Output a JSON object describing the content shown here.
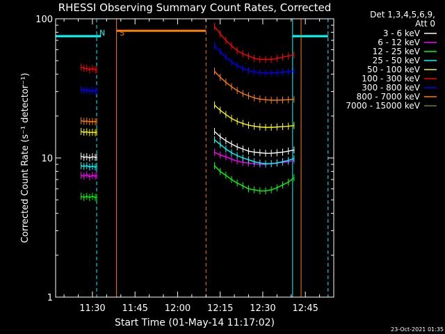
{
  "chart_data": {
    "type": "line",
    "title": "RHESSI Observing Summary Count Rates, Corrected",
    "xlabel": "Start Time (01-May-14 11:17:02)",
    "ylabel": "Corrected Count Rate (s⁻¹ detector⁻¹)",
    "yscale": "log",
    "ylim": [
      1,
      100
    ],
    "ytick_labels": [
      "1",
      "10",
      "100"
    ],
    "xlim": [
      "11:17:02",
      "12:55:00"
    ],
    "xtick_labels": [
      "11:30",
      "11:45",
      "12:00",
      "12:15",
      "12:30",
      "12:45"
    ],
    "legend_header": [
      "Det 1,3,4,5,6,9,",
      "Att 0"
    ],
    "legend_position": "right",
    "timestamp": "23-Oct-2021 01:35",
    "series": [
      {
        "name": "3 - 6 keV",
        "color": "#ffffff",
        "x": [],
        "y": []
      },
      {
        "name": "6 - 12 keV",
        "color": "#ff00ff",
        "segments": [
          {
            "x": [
              "11:26:00",
              "11:27:00",
              "11:28:00",
              "11:29:00",
              "11:30:00",
              "11:31:00",
              "11:31:30"
            ],
            "y": [
              7.5,
              7.4,
              7.6,
              7.3,
              7.5,
              7.4,
              7.5
            ]
          },
          {
            "x": [
              "12:13:00",
              "12:15:00",
              "12:17:00",
              "12:19:00",
              "12:21:00",
              "12:23:00",
              "12:25:00",
              "12:27:00",
              "12:29:00",
              "12:31:00",
              "12:33:00",
              "12:35:00",
              "12:37:00",
              "12:39:00",
              "12:41:00"
            ],
            "y": [
              11.0,
              10.5,
              10.2,
              9.8,
              9.5,
              9.3,
              9.2,
              9.1,
              9.0,
              9.0,
              9.1,
              9.2,
              9.3,
              9.4,
              9.6
            ]
          }
        ]
      },
      {
        "name": "12 - 25 keV",
        "color": "#00ff00",
        "segments": [
          {
            "x": [
              "11:26:00",
              "11:27:00",
              "11:28:00",
              "11:29:00",
              "11:30:00",
              "11:31:00",
              "11:31:30"
            ],
            "y": [
              5.3,
              5.2,
              5.3,
              5.2,
              5.3,
              5.2,
              5.2
            ]
          },
          {
            "x": [
              "12:13:00",
              "12:15:00",
              "12:17:00",
              "12:19:00",
              "12:21:00",
              "12:23:00",
              "12:25:00",
              "12:27:00",
              "12:29:00",
              "12:31:00",
              "12:33:00",
              "12:35:00",
              "12:37:00",
              "12:39:00",
              "12:41:00"
            ],
            "y": [
              8.8,
              8.0,
              7.5,
              7.0,
              6.6,
              6.3,
              6.0,
              5.9,
              5.8,
              5.8,
              5.9,
              6.1,
              6.4,
              6.7,
              7.2
            ]
          }
        ]
      },
      {
        "name": "25 - 50 keV",
        "color": "#00ffff",
        "segments": [
          {
            "x": [
              "11:26:00",
              "11:27:00",
              "11:28:00",
              "11:29:00",
              "11:30:00",
              "11:31:00",
              "11:31:30"
            ],
            "y": [
              8.8,
              8.7,
              8.8,
              8.6,
              8.7,
              8.6,
              8.7
            ]
          },
          {
            "x": [
              "12:13:00",
              "12:15:00",
              "12:17:00",
              "12:19:00",
              "12:21:00",
              "12:23:00",
              "12:25:00",
              "12:27:00",
              "12:29:00",
              "12:31:00",
              "12:33:00",
              "12:35:00",
              "12:37:00",
              "12:39:00",
              "12:41:00"
            ],
            "y": [
              13.5,
              12.5,
              11.6,
              10.9,
              10.4,
              10.0,
              9.7,
              9.4,
              9.2,
              9.1,
              9.1,
              9.2,
              9.4,
              9.6,
              9.9
            ]
          }
        ]
      },
      {
        "name": "50 - 100 keV",
        "color": "#ffff00",
        "segments": [
          {
            "x": [
              "11:26:00",
              "11:27:00",
              "11:28:00",
              "11:29:00",
              "11:30:00",
              "11:31:00",
              "11:31:30"
            ],
            "y": [
              15.5,
              15.3,
              15.4,
              15.2,
              15.3,
              15.2,
              15.3
            ]
          },
          {
            "x": [
              "12:13:00",
              "12:15:00",
              "12:17:00",
              "12:19:00",
              "12:21:00",
              "12:23:00",
              "12:25:00",
              "12:27:00",
              "12:29:00",
              "12:31:00",
              "12:33:00",
              "12:35:00",
              "12:37:00",
              "12:39:00",
              "12:41:00"
            ],
            "y": [
              24.0,
              22.0,
              20.5,
              19.2,
              18.3,
              17.7,
              17.2,
              16.9,
              16.7,
              16.6,
              16.6,
              16.7,
              16.8,
              16.9,
              17.1
            ]
          }
        ]
      },
      {
        "name": "100 - 300 keV",
        "color": "#ff0000",
        "segments": [
          {
            "x": [
              "11:26:00",
              "11:27:00",
              "11:28:00",
              "11:29:00",
              "11:30:00",
              "11:31:00",
              "11:31:30"
            ],
            "y": [
              45,
              44,
              44,
              43,
              44,
              43,
              43
            ]
          },
          {
            "x": [
              "12:13:00",
              "12:15:00",
              "12:17:00",
              "12:19:00",
              "12:21:00",
              "12:23:00",
              "12:25:00",
              "12:27:00",
              "12:29:00",
              "12:31:00",
              "12:33:00",
              "12:35:00",
              "12:37:00",
              "12:39:00",
              "12:41:00"
            ],
            "y": [
              88,
              78,
              70,
              64,
              59,
              56,
              54,
              52,
              51,
              51,
              51,
              52,
              53,
              54,
              55
            ]
          }
        ]
      },
      {
        "name": "300 - 800 keV",
        "color": "#0000ff",
        "segments": [
          {
            "x": [
              "11:26:00",
              "11:27:00",
              "11:28:00",
              "11:29:00",
              "11:30:00",
              "11:31:00",
              "11:31:30"
            ],
            "y": [
              31,
              30.5,
              30.8,
              30.2,
              30.5,
              30.2,
              30.4
            ]
          },
          {
            "x": [
              "12:13:00",
              "12:15:00",
              "12:17:00",
              "12:19:00",
              "12:21:00",
              "12:23:00",
              "12:25:00",
              "12:27:00",
              "12:29:00",
              "12:31:00",
              "12:33:00",
              "12:35:00",
              "12:37:00",
              "12:39:00",
              "12:41:00"
            ],
            "y": [
              64,
              58,
              53,
              49,
              46,
              44,
              42.5,
              41.5,
              41,
              40.8,
              40.8,
              41,
              41.3,
              41.6,
              42
            ]
          }
        ]
      },
      {
        "name": "800 - 7000 keV",
        "color": "#ff7f00",
        "segments": [
          {
            "x": [
              "11:26:00",
              "11:27:00",
              "11:28:00",
              "11:29:00",
              "11:30:00",
              "11:31:00",
              "11:31:30"
            ],
            "y": [
              18.5,
              18.3,
              18.4,
              18.2,
              18.3,
              18.2,
              18.3
            ]
          },
          {
            "x": [
              "12:13:00",
              "12:15:00",
              "12:17:00",
              "12:19:00",
              "12:21:00",
              "12:23:00",
              "12:25:00",
              "12:27:00",
              "12:29:00",
              "12:31:00",
              "12:33:00",
              "12:35:00",
              "12:37:00",
              "12:39:00",
              "12:41:00"
            ],
            "y": [
              42,
              38,
              35,
              32.5,
              30.5,
              29,
              28,
              27,
              26.5,
              26.2,
              26,
              26,
              26.1,
              26.2,
              26.4
            ]
          }
        ]
      },
      {
        "name": "7000 - 15000 keV",
        "color": "#808000",
        "x": [],
        "y": []
      }
    ],
    "series_3_6_segments": [
      {
        "x": [
          "11:26:00",
          "11:27:00",
          "11:28:00",
          "11:29:00",
          "11:30:00",
          "11:31:00",
          "11:31:30"
        ],
        "y": [
          10.3,
          10.1,
          10.2,
          10.0,
          10.2,
          10.1,
          10.1
        ]
      },
      {
        "x": [
          "12:13:00",
          "12:15:00",
          "12:17:00",
          "12:19:00",
          "12:21:00",
          "12:23:00",
          "12:25:00",
          "12:27:00",
          "12:29:00",
          "12:31:00",
          "12:33:00",
          "12:35:00",
          "12:37:00",
          "12:39:00",
          "12:41:00"
        ],
        "y": [
          15.5,
          14.2,
          13.3,
          12.6,
          12.0,
          11.6,
          11.2,
          11.0,
          10.9,
          10.8,
          10.8,
          10.9,
          11.0,
          11.2,
          11.4
        ]
      }
    ],
    "annotations": [
      {
        "text": "N",
        "color": "#00ffff",
        "x": "11:31:30"
      },
      {
        "text": "S",
        "color": "#ff7f00",
        "x": "11:38:30"
      }
    ],
    "status_bars": [
      {
        "label": "night",
        "color": "#00ffff",
        "x_start": "11:17:02",
        "x_end": "11:33:00",
        "y": 75
      },
      {
        "label": "saa",
        "color": "#ff7f00",
        "x_start": "11:38:30",
        "x_end": "12:10:00",
        "y": 82
      },
      {
        "label": "night",
        "color": "#00ffff",
        "x_start": "12:40:30",
        "x_end": "12:53:00",
        "y": 75
      }
    ],
    "vlines": [
      {
        "x": "11:17:02",
        "color": "#00ffff",
        "style": "solid"
      },
      {
        "x": "11:31:30",
        "color": "#00ffff",
        "style": "dash"
      },
      {
        "x": "11:38:30",
        "color": "#ff7f00",
        "style": "solid"
      },
      {
        "x": "12:10:00",
        "color": "#ff7f00",
        "style": "dash"
      },
      {
        "x": "12:40:30",
        "color": "#00ffff",
        "style": "solid"
      },
      {
        "x": "12:43:30",
        "color": "#ff7f00",
        "style": "solid"
      },
      {
        "x": "12:53:00",
        "color": "#00ffff",
        "style": "dash"
      }
    ]
  }
}
